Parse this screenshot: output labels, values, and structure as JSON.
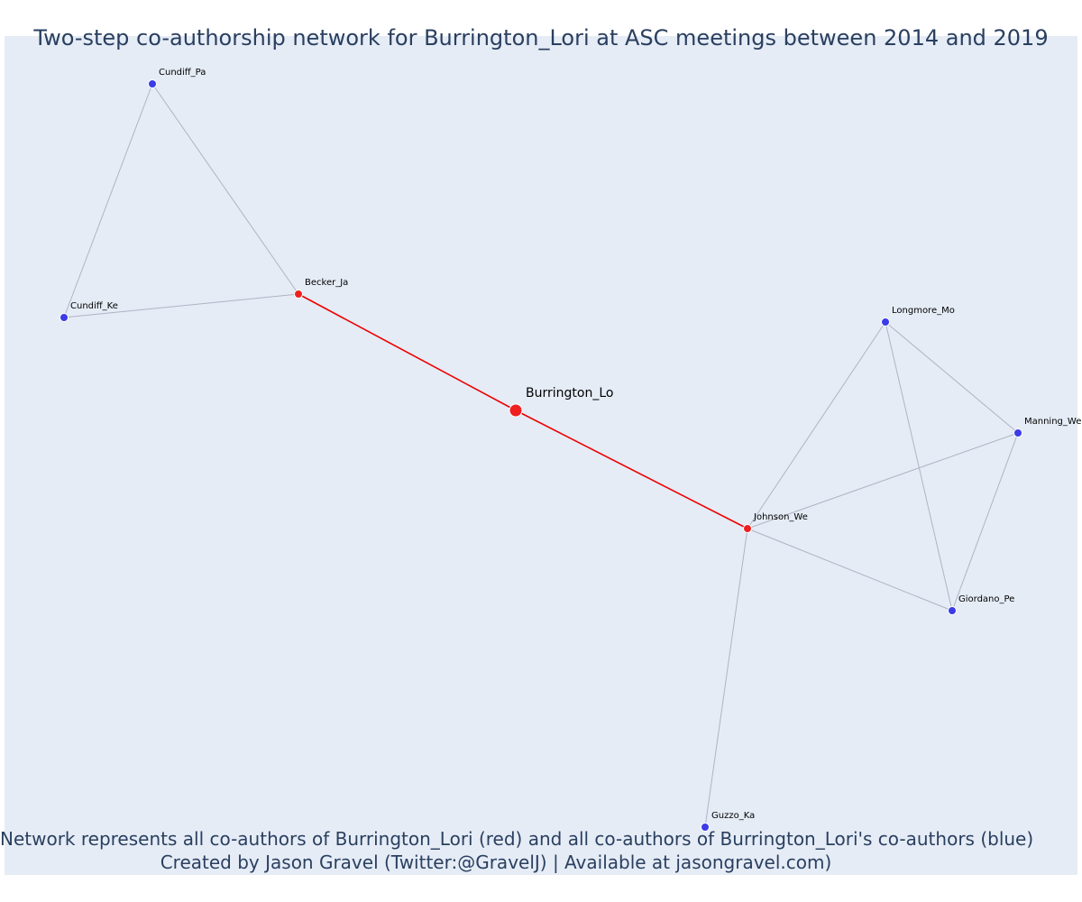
{
  "title": "Two-step co-authorship network for Burrington_Lori at ASC meetings between 2014 and 2019",
  "caption": {
    "line1": "Network represents all co-authors of Burrington_Lori (red) and all co-authors of Burrington_Lori's co-authors (blue)",
    "line2": "Created by Jason Gravel (Twitter:@GravelJ) | Available at jasongravel.com)"
  },
  "colors": {
    "plot_background": "#e5ecf6",
    "focal_edge": "#ee0000",
    "other_edge": "#b0b3c4",
    "red_node": "#ee2020",
    "blue_node": "#3b3be8",
    "text": "#2a3f5f"
  },
  "network": {
    "nodes": [
      {
        "id": "Burrington_Lo",
        "label": "Burrington_Lo",
        "group": "focal"
      },
      {
        "id": "Becker_Ja",
        "label": "Becker_Ja",
        "group": "red"
      },
      {
        "id": "Johnson_We",
        "label": "Johnson_We",
        "group": "red"
      },
      {
        "id": "Cundiff_Pa",
        "label": "Cundiff_Pa",
        "group": "blue"
      },
      {
        "id": "Cundiff_Ke",
        "label": "Cundiff_Ke",
        "group": "blue"
      },
      {
        "id": "Longmore_Mo",
        "label": "Longmore_Mo",
        "group": "blue"
      },
      {
        "id": "Manning_We",
        "label": "Manning_We",
        "group": "blue"
      },
      {
        "id": "Giordano_Pe",
        "label": "Giordano_Pe",
        "group": "blue"
      },
      {
        "id": "Guzzo_Ka",
        "label": "Guzzo_Ka",
        "group": "blue"
      }
    ],
    "edges": [
      {
        "source": "Burrington_Lo",
        "target": "Becker_Ja",
        "type": "focal"
      },
      {
        "source": "Burrington_Lo",
        "target": "Johnson_We",
        "type": "focal"
      },
      {
        "source": "Becker_Ja",
        "target": "Cundiff_Pa",
        "type": "other"
      },
      {
        "source": "Becker_Ja",
        "target": "Cundiff_Ke",
        "type": "other"
      },
      {
        "source": "Cundiff_Pa",
        "target": "Cundiff_Ke",
        "type": "other"
      },
      {
        "source": "Johnson_We",
        "target": "Longmore_Mo",
        "type": "other"
      },
      {
        "source": "Johnson_We",
        "target": "Manning_We",
        "type": "other"
      },
      {
        "source": "Johnson_We",
        "target": "Giordano_Pe",
        "type": "other"
      },
      {
        "source": "Johnson_We",
        "target": "Guzzo_Ka",
        "type": "other"
      },
      {
        "source": "Longmore_Mo",
        "target": "Manning_We",
        "type": "other"
      },
      {
        "source": "Longmore_Mo",
        "target": "Giordano_Pe",
        "type": "other"
      },
      {
        "source": "Manning_We",
        "target": "Giordano_Pe",
        "type": "other"
      }
    ]
  }
}
